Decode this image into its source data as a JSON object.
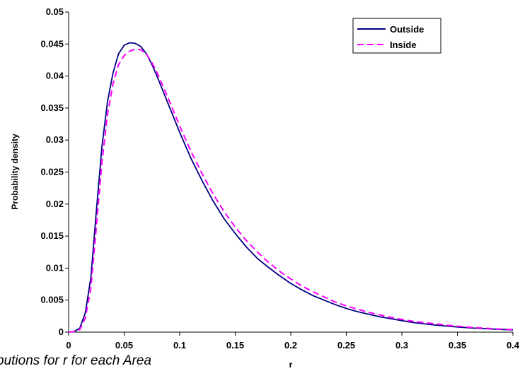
{
  "caption": "butions for r for each Area",
  "chart_data": {
    "type": "line",
    "title": "",
    "xlabel": "r",
    "ylabel": "Probability density",
    "xlim": [
      0,
      0.4
    ],
    "ylim": [
      0,
      0.05
    ],
    "x_ticks": [
      "0",
      "0.05",
      "0.1",
      "0.15",
      "0.2",
      "0.25",
      "0.3",
      "0.35",
      "0.4"
    ],
    "y_ticks": [
      "0",
      "0.005",
      "0.01",
      "0.015",
      "0.02",
      "0.025",
      "0.03",
      "0.035",
      "0.04",
      "0.045",
      "0.05"
    ],
    "grid": false,
    "legend_position": "top-right",
    "x": [
      0,
      0.005,
      0.01,
      0.015,
      0.02,
      0.025,
      0.03,
      0.035,
      0.04,
      0.045,
      0.05,
      0.055,
      0.06,
      0.065,
      0.07,
      0.075,
      0.08,
      0.09,
      0.1,
      0.11,
      0.12,
      0.13,
      0.14,
      0.15,
      0.16,
      0.17,
      0.18,
      0.19,
      0.2,
      0.21,
      0.22,
      0.23,
      0.24,
      0.25,
      0.26,
      0.27,
      0.28,
      0.29,
      0.3,
      0.31,
      0.32,
      0.33,
      0.34,
      0.35,
      0.36,
      0.37,
      0.38,
      0.39,
      0.4
    ],
    "series": [
      {
        "name": "Outside",
        "color": "#000080",
        "dash": "solid",
        "values": [
          0,
          0.0001,
          0.0006,
          0.003,
          0.0085,
          0.019,
          0.029,
          0.036,
          0.0405,
          0.0435,
          0.0448,
          0.0452,
          0.0451,
          0.0446,
          0.0435,
          0.0418,
          0.0398,
          0.0355,
          0.0312,
          0.0272,
          0.0237,
          0.0205,
          0.0177,
          0.0154,
          0.0133,
          0.0115,
          0.0101,
          0.0088,
          0.0076,
          0.0066,
          0.0057,
          0.005,
          0.0043,
          0.0037,
          0.0032,
          0.0028,
          0.0024,
          0.0021,
          0.0018,
          0.0015,
          0.0013,
          0.0011,
          0.00095,
          0.0008,
          0.00068,
          0.00058,
          0.0005,
          0.00042,
          0.00035
        ]
      },
      {
        "name": "Inside",
        "color": "#FF00FF",
        "dash": "dashed",
        "values": [
          0,
          0.0001,
          0.0004,
          0.0022,
          0.0068,
          0.0165,
          0.0265,
          0.034,
          0.0388,
          0.0418,
          0.0432,
          0.0439,
          0.0442,
          0.0441,
          0.0434,
          0.0421,
          0.0404,
          0.0364,
          0.0322,
          0.0283,
          0.0248,
          0.0216,
          0.0188,
          0.0164,
          0.0143,
          0.0125,
          0.0109,
          0.0095,
          0.0083,
          0.0072,
          0.0063,
          0.0055,
          0.0047,
          0.0041,
          0.0036,
          0.0031,
          0.0027,
          0.0023,
          0.002,
          0.0017,
          0.0015,
          0.0013,
          0.0011,
          0.00092,
          0.00078,
          0.00066,
          0.00056,
          0.00047,
          0.0004
        ]
      }
    ]
  }
}
